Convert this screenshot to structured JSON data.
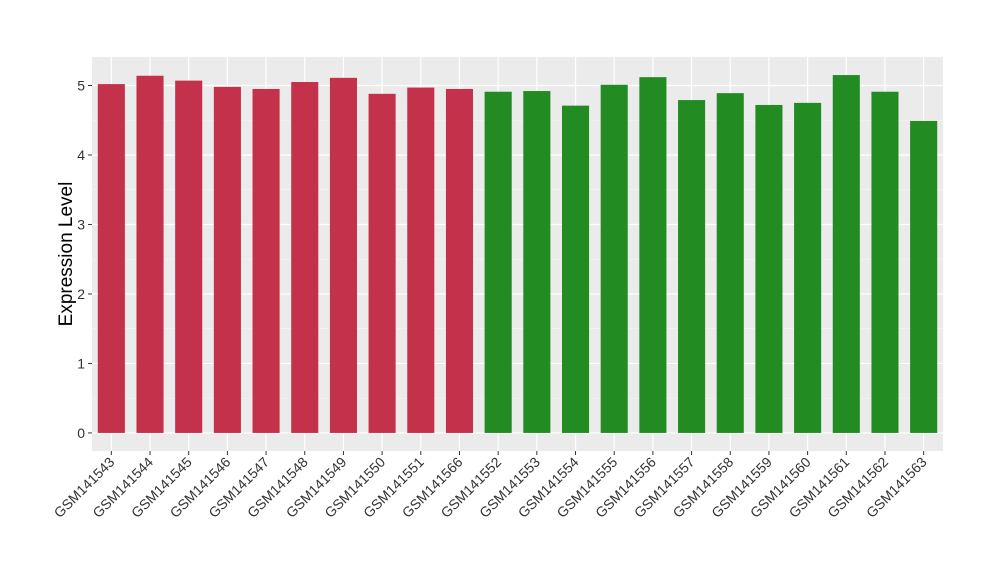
{
  "chart_data": {
    "type": "bar",
    "title": "",
    "xlabel": "",
    "ylabel": "Expression Level",
    "ylim": [
      -0.26,
      5.41
    ],
    "yticks": [
      0,
      1,
      2,
      3,
      4,
      5
    ],
    "grid": true,
    "categories": [
      "GSM141543",
      "GSM141544",
      "GSM141545",
      "GSM141546",
      "GSM141547",
      "GSM141548",
      "GSM141549",
      "GSM141550",
      "GSM141551",
      "GSM141566",
      "GSM141552",
      "GSM141553",
      "GSM141554",
      "GSM141555",
      "GSM141556",
      "GSM141557",
      "GSM141558",
      "GSM141559",
      "GSM141560",
      "GSM141561",
      "GSM141562",
      "GSM141563"
    ],
    "values": [
      5.02,
      5.14,
      5.07,
      4.98,
      4.95,
      5.05,
      5.11,
      4.88,
      4.97,
      4.95,
      4.91,
      4.92,
      4.71,
      5.01,
      5.12,
      4.79,
      4.89,
      4.72,
      4.75,
      5.15,
      4.91,
      4.49
    ],
    "groups": [
      0,
      0,
      0,
      0,
      0,
      0,
      0,
      0,
      0,
      0,
      1,
      1,
      1,
      1,
      1,
      1,
      1,
      1,
      1,
      1,
      1,
      1
    ],
    "group_colors": [
      "#c3314a",
      "#228b22"
    ]
  }
}
